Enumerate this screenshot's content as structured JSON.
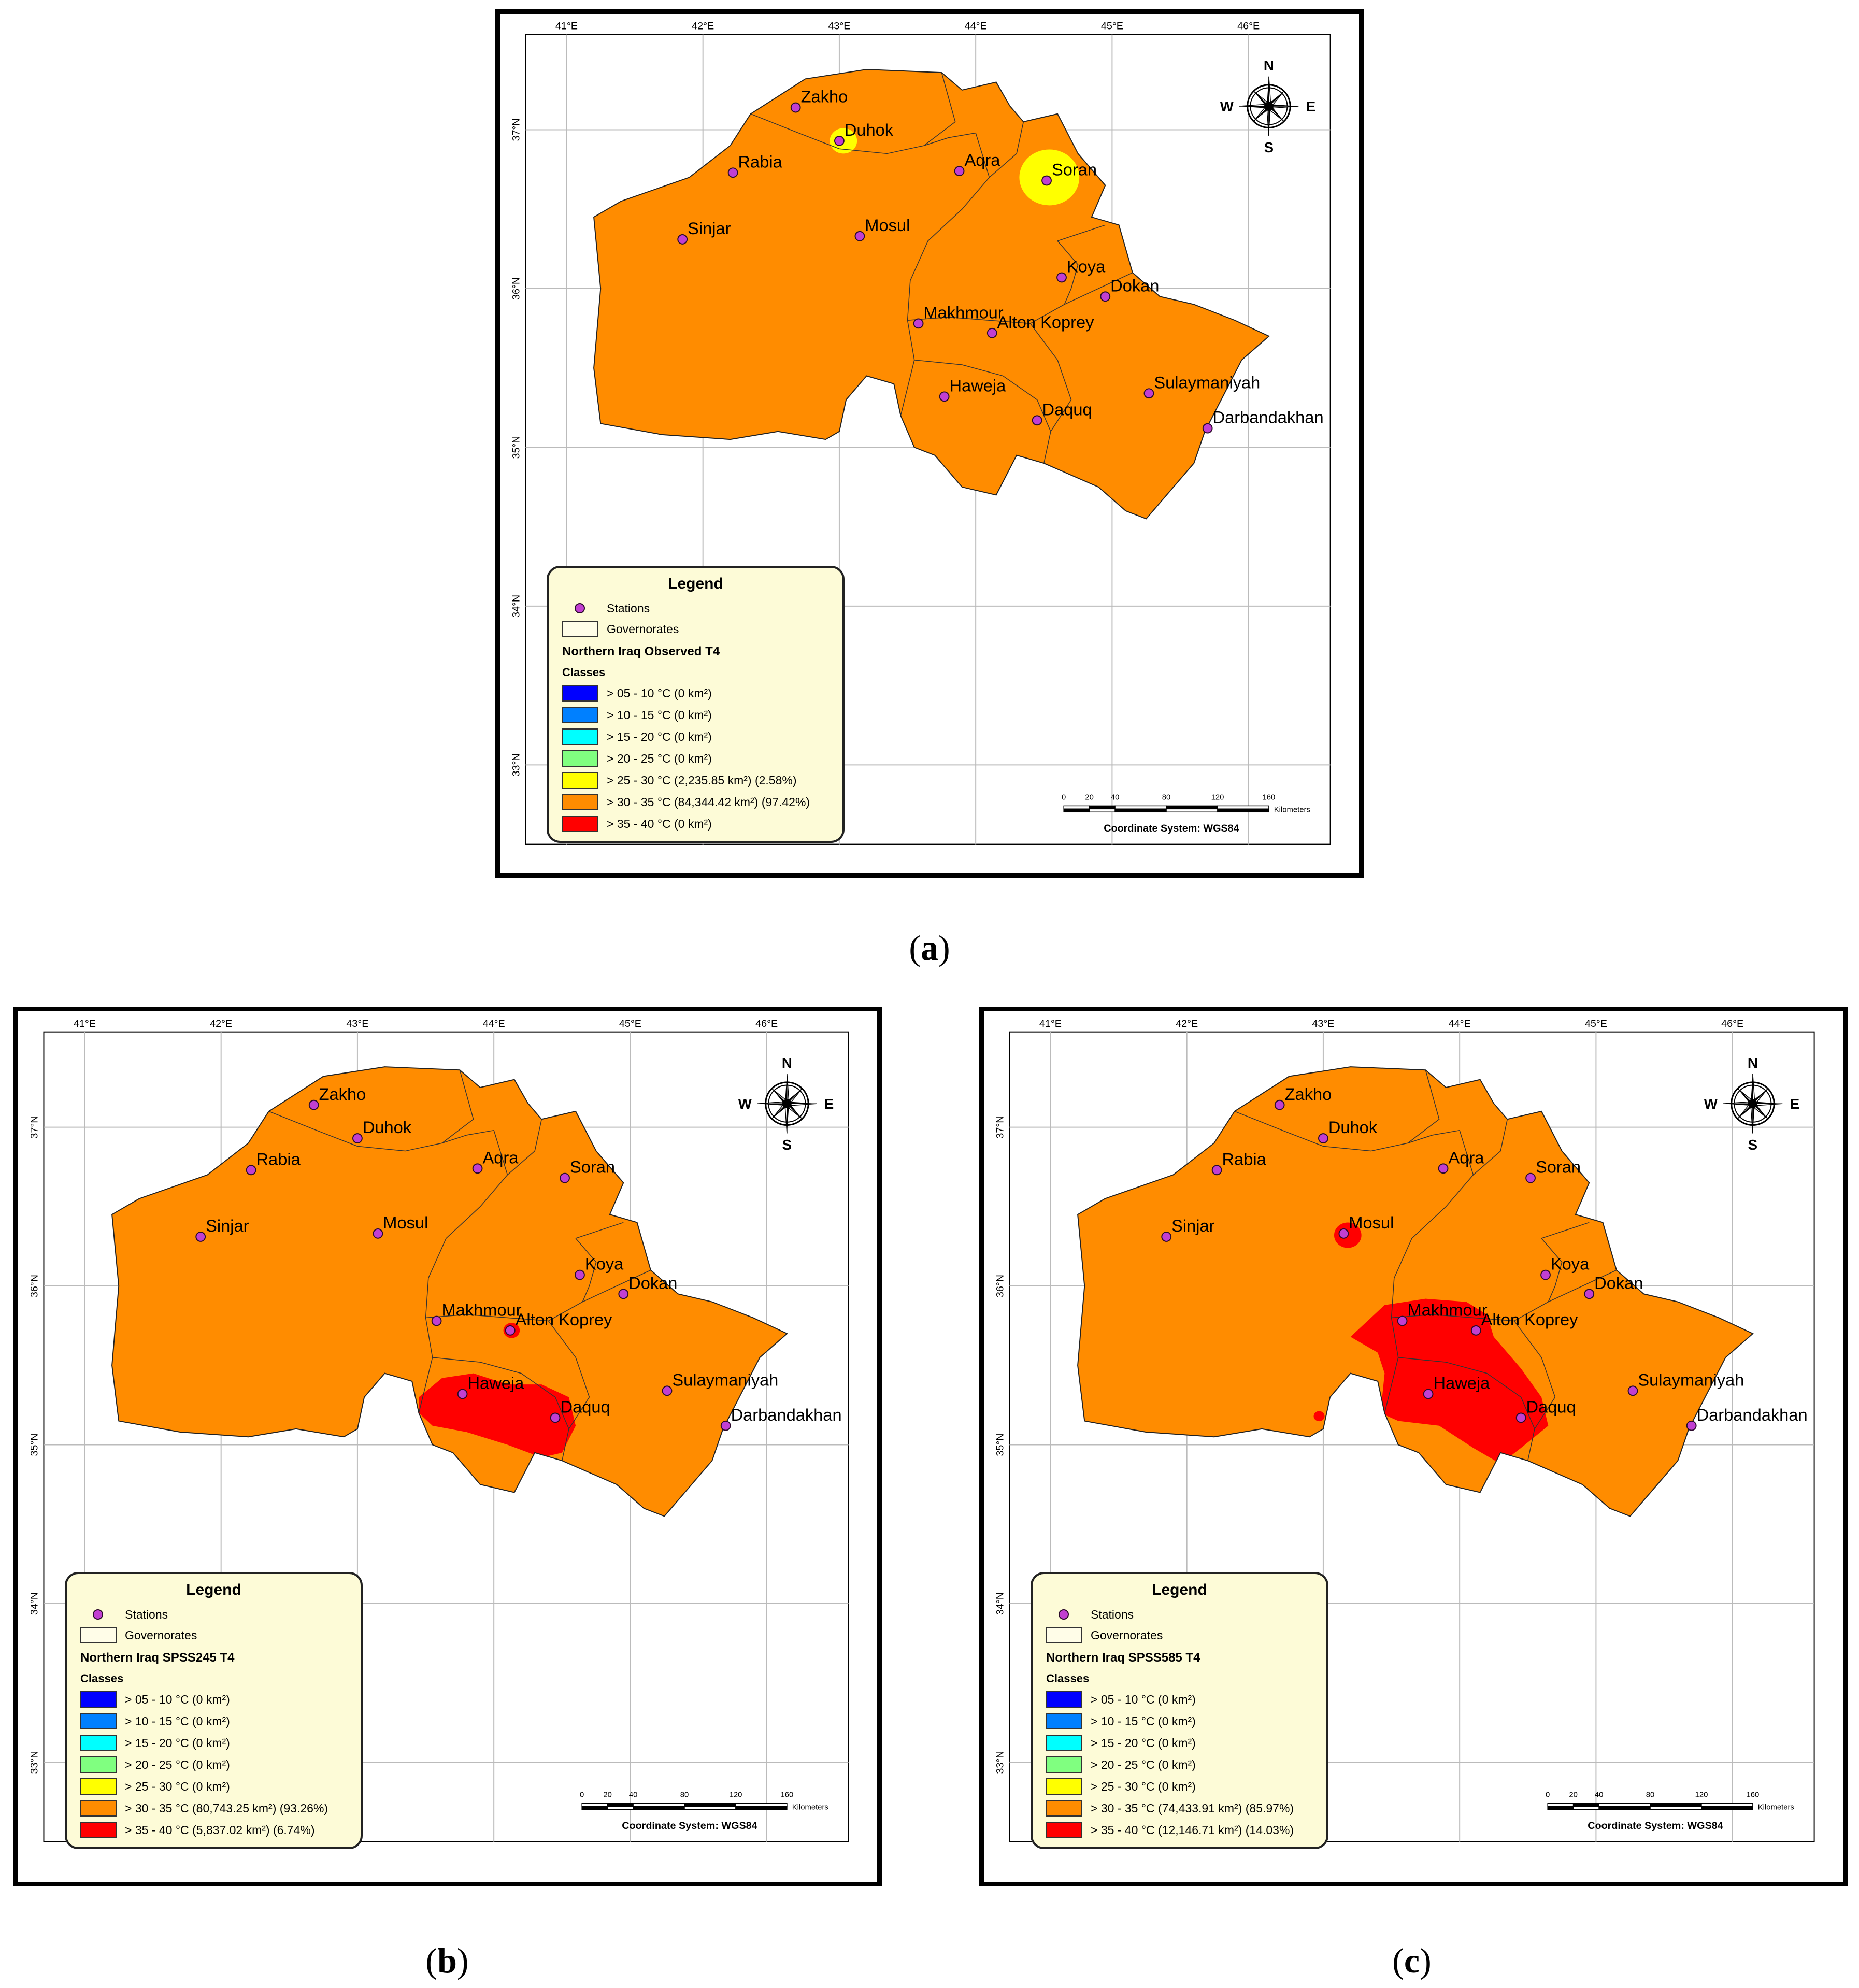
{
  "figure": {
    "captions": [
      "a",
      "b",
      "c"
    ],
    "axis": {
      "lon_labels": [
        "41°E",
        "42°E",
        "43°E",
        "44°E",
        "45°E",
        "46°E"
      ],
      "lat_labels": [
        "37°N",
        "36°N",
        "35°N",
        "34°N",
        "33°N"
      ]
    },
    "compass": {
      "n": "N",
      "s": "S",
      "e": "E",
      "w": "W"
    },
    "scale_bar": {
      "ticks": [
        "0",
        "20",
        "40",
        "80",
        "120",
        "160"
      ],
      "unit": "Kilometers"
    },
    "coordinate_system": "Coordinate System: WGS84",
    "stations": [
      {
        "name": "Zakho",
        "lon": 42.68,
        "lat": 37.14
      },
      {
        "name": "Duhok",
        "lon": 43.0,
        "lat": 36.93
      },
      {
        "name": "Rabia",
        "lon": 42.22,
        "lat": 36.73
      },
      {
        "name": "Aqra",
        "lon": 43.88,
        "lat": 36.74
      },
      {
        "name": "Soran",
        "lon": 44.52,
        "lat": 36.68
      },
      {
        "name": "Sinjar",
        "lon": 41.85,
        "lat": 36.31
      },
      {
        "name": "Mosul",
        "lon": 43.15,
        "lat": 36.33
      },
      {
        "name": "Koya",
        "lon": 44.63,
        "lat": 36.07
      },
      {
        "name": "Dokan",
        "lon": 44.95,
        "lat": 35.95
      },
      {
        "name": "Makhmour",
        "lon": 43.58,
        "lat": 35.78
      },
      {
        "name": "Alton Koprey",
        "lon": 44.12,
        "lat": 35.72
      },
      {
        "name": "Haweja",
        "lon": 43.77,
        "lat": 35.32
      },
      {
        "name": "Daquq",
        "lon": 44.45,
        "lat": 35.17
      },
      {
        "name": "Sulaymaniyah",
        "lon": 45.27,
        "lat": 35.34
      },
      {
        "name": "Darbandakhan",
        "lon": 45.7,
        "lat": 35.12
      }
    ],
    "class_colors": [
      "#0000ff",
      "#0080ff",
      "#00ffff",
      "#80ff80",
      "#ffff00",
      "#ff8c00",
      "#ff0000"
    ]
  },
  "panels": [
    {
      "id": "a",
      "legend": {
        "title": "Legend",
        "stations_label": "Stations",
        "governorates_label": "Governorates",
        "layer_title": "Northern Iraq Observed T4",
        "classes_label": "Classes",
        "classes": [
          "> 05 - 10 °C (0 km²)",
          "> 10 - 15 °C (0 km²)",
          "> 15 - 20 °C (0 km²)",
          "> 20 - 25 °C (0 km²)",
          "> 25 - 30 °C (2,235.85 km²) (2.58%)",
          "> 30 - 35 °C (84,344.42 km²) (97.42%)",
          "> 35 - 40 °C (0 km²)"
        ]
      }
    },
    {
      "id": "b",
      "legend": {
        "title": "Legend",
        "stations_label": "Stations",
        "governorates_label": "Governorates",
        "layer_title": "Northern Iraq SPSS245 T4",
        "classes_label": "Classes",
        "classes": [
          "> 05 - 10 °C (0 km²)",
          "> 10 - 15 °C (0 km²)",
          "> 15 - 20 °C (0 km²)",
          "> 20 - 25 °C (0 km²)",
          "> 25 - 30 °C (0 km²)",
          "> 30 - 35 °C (80,743.25 km²) (93.26%)",
          "> 35 - 40 °C (5,837.02 km²) (6.74%)"
        ]
      }
    },
    {
      "id": "c",
      "legend": {
        "title": "Legend",
        "stations_label": "Stations",
        "governorates_label": "Governorates",
        "layer_title": "Northern Iraq SPSS585 T4",
        "classes_label": "Classes",
        "classes": [
          "> 05 - 10 °C (0 km²)",
          "> 10 - 15 °C (0 km²)",
          "> 15 - 20 °C (0 km²)",
          "> 20 - 25 °C (0 km²)",
          "> 25 - 30 °C (0 km²)",
          "> 30 - 35 °C (74,433.91 km²) (85.97%)",
          "> 35 - 40 °C (12,146.71 km²) (14.03%)"
        ]
      }
    }
  ]
}
